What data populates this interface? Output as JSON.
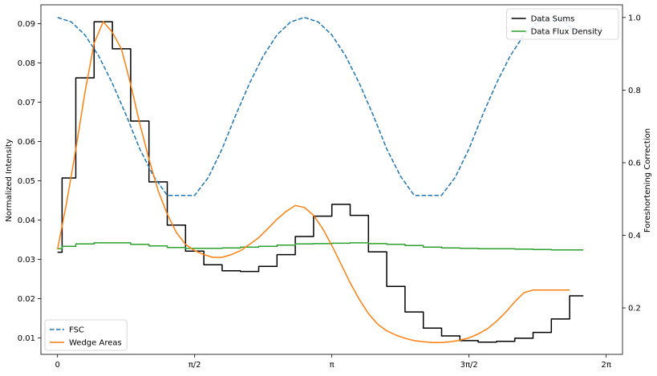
{
  "chart_data": {
    "type": "line",
    "title": "",
    "xlabel": "",
    "ylabel": "Normalized Intensity",
    "y2label": "Foreshortening Correction",
    "xlim": [
      -0.19,
      6.47
    ],
    "ylim": [
      0.0058,
      0.0948
    ],
    "y2lim": [
      0.072,
      1.035
    ],
    "x_ticks": [
      {
        "value": 0,
        "label": "0"
      },
      {
        "value": 1.5708,
        "label": "π/2"
      },
      {
        "value": 3.1416,
        "label": "π"
      },
      {
        "value": 4.7124,
        "label": "3π/2"
      },
      {
        "value": 6.2832,
        "label": "2π"
      }
    ],
    "y_ticks": [
      {
        "value": 0.01,
        "label": "0.01"
      },
      {
        "value": 0.02,
        "label": "0.02"
      },
      {
        "value": 0.03,
        "label": "0.03"
      },
      {
        "value": 0.04,
        "label": "0.04"
      },
      {
        "value": 0.05,
        "label": "0.05"
      },
      {
        "value": 0.06,
        "label": "0.06"
      },
      {
        "value": 0.07,
        "label": "0.07"
      },
      {
        "value": 0.08,
        "label": "0.08"
      },
      {
        "value": 0.09,
        "label": "0.09"
      }
    ],
    "y2_ticks": [
      {
        "value": 0.2,
        "label": "0.2"
      },
      {
        "value": 0.4,
        "label": "0.4"
      },
      {
        "value": 0.6,
        "label": "0.6"
      },
      {
        "value": 0.8,
        "label": "0.8"
      },
      {
        "value": 1.0,
        "label": "1.0"
      }
    ],
    "series": [
      {
        "name": "Data Sums",
        "axis": "left",
        "style": "step",
        "color": "#000000",
        "x": [
          0,
          0.1047,
          0.3142,
          0.5236,
          0.733,
          0.9425,
          1.1519,
          1.3614,
          1.5708,
          1.7802,
          1.9897,
          2.1991,
          2.4086,
          2.618,
          2.8274,
          3.0369,
          3.2463,
          3.4558,
          3.6652,
          3.8746,
          4.0841,
          4.2935,
          4.503,
          4.7124,
          4.9218,
          5.1313,
          5.3407,
          5.5501,
          5.7596,
          5.969
        ],
        "values": [
          0.0318,
          0.0507,
          0.0762,
          0.0905,
          0.0836,
          0.0652,
          0.0497,
          0.0387,
          0.0321,
          0.0286,
          0.0271,
          0.0269,
          0.0282,
          0.0312,
          0.0358,
          0.041,
          0.044,
          0.0412,
          0.0319,
          0.0231,
          0.0166,
          0.0125,
          0.0105,
          0.0093,
          0.0089,
          0.0091,
          0.0099,
          0.0114,
          0.0148,
          0.0207
        ]
      },
      {
        "name": "Data Flux Density",
        "axis": "left",
        "style": "step",
        "color": "#2ca02c",
        "x": [
          0,
          0.1047,
          0.3142,
          0.5236,
          0.733,
          0.9425,
          1.1519,
          1.3614,
          1.5708,
          1.7802,
          1.9897,
          2.1991,
          2.4086,
          2.618,
          2.8274,
          3.0369,
          3.2463,
          3.4558,
          3.6652,
          3.8746,
          4.0841,
          4.2935,
          4.503,
          4.7124,
          4.9218,
          5.1313,
          5.3407,
          5.5501,
          5.7596,
          5.969
        ],
        "values": [
          0.0327,
          0.0333,
          0.0339,
          0.0342,
          0.0342,
          0.0338,
          0.0334,
          0.033,
          0.0328,
          0.0328,
          0.0329,
          0.0331,
          0.0333,
          0.0336,
          0.0339,
          0.034,
          0.0341,
          0.0342,
          0.034,
          0.0338,
          0.0335,
          0.0331,
          0.0329,
          0.0328,
          0.0327,
          0.0327,
          0.0326,
          0.0325,
          0.0324,
          0.0324
        ]
      },
      {
        "name": "FSC",
        "axis": "right",
        "style": "dashed",
        "color": "#1f77b4",
        "x": [
          0,
          0.157,
          0.314,
          0.471,
          0.628,
          0.785,
          0.942,
          1.1,
          1.257,
          1.414,
          1.571,
          1.728,
          1.885,
          2.042,
          2.199,
          2.356,
          2.513,
          2.67,
          2.827,
          2.985,
          3.142,
          3.299,
          3.456,
          3.613,
          3.77,
          3.927,
          4.084,
          4.241,
          4.398,
          4.555,
          4.712,
          4.869,
          5.027,
          5.184,
          5.341,
          5.498,
          5.655,
          5.812,
          5.969
        ],
        "values": [
          1.0,
          0.988,
          0.952,
          0.894,
          0.819,
          0.732,
          0.638,
          0.563,
          0.51,
          0.51,
          0.51,
          0.56,
          0.638,
          0.732,
          0.819,
          0.894,
          0.952,
          0.988,
          1.0,
          0.988,
          0.952,
          0.894,
          0.819,
          0.732,
          0.638,
          0.563,
          0.51,
          0.51,
          0.51,
          0.56,
          0.638,
          0.732,
          0.819,
          0.894,
          0.952,
          0.988,
          1.0,
          0.988,
          0.952
        ]
      },
      {
        "name": "Wedge Areas",
        "axis": "left",
        "style": "line",
        "color": "#ff7f0e",
        "x": [
          0,
          0.1047,
          0.2094,
          0.3142,
          0.4189,
          0.5236,
          0.6283,
          0.733,
          0.8378,
          0.9425,
          1.0472,
          1.1519,
          1.2566,
          1.3614,
          1.4661,
          1.5708,
          1.6755,
          1.7802,
          1.885,
          1.9897,
          2.0944,
          2.1991,
          2.3038,
          2.4086,
          2.5133,
          2.618,
          2.7227,
          2.8274,
          2.9322,
          3.0369,
          3.1416,
          3.2463,
          3.351,
          3.4558,
          3.5605,
          3.6652,
          3.7699,
          3.8746,
          3.9794,
          4.0841,
          4.1888,
          4.2935,
          4.3982,
          4.503,
          4.6077,
          4.7124,
          4.8171,
          4.9218,
          5.0265,
          5.1313,
          5.236,
          5.3407,
          5.4454,
          5.5501,
          5.6549,
          5.7596,
          5.8643,
          5.969,
          6.0737
        ],
        "values": [
          0.0325,
          0.0445,
          0.058,
          0.0725,
          0.085,
          0.0905,
          0.0878,
          0.0835,
          0.0745,
          0.0645,
          0.0555,
          0.0475,
          0.0415,
          0.0368,
          0.0338,
          0.0322,
          0.0312,
          0.0305,
          0.0305,
          0.0312,
          0.0322,
          0.0338,
          0.0355,
          0.0378,
          0.0402,
          0.0422,
          0.0437,
          0.0432,
          0.0412,
          0.0378,
          0.0335,
          0.0288,
          0.024,
          0.0198,
          0.0162,
          0.0135,
          0.0118,
          0.0107,
          0.0099,
          0.0093,
          0.009,
          0.0088,
          0.0088,
          0.009,
          0.0094,
          0.01,
          0.011,
          0.0123,
          0.0142,
          0.0165,
          0.0192,
          0.0215,
          0.0222,
          0.0222,
          0.0222,
          0.0222,
          0.0222,
          0.0222,
          0.0222
        ]
      }
    ],
    "legends": [
      {
        "placement": "top-right",
        "entries": [
          "Data Sums",
          "Data Flux Density"
        ]
      },
      {
        "placement": "bottom-left",
        "entries": [
          "FSC",
          "Wedge Areas"
        ]
      }
    ]
  }
}
